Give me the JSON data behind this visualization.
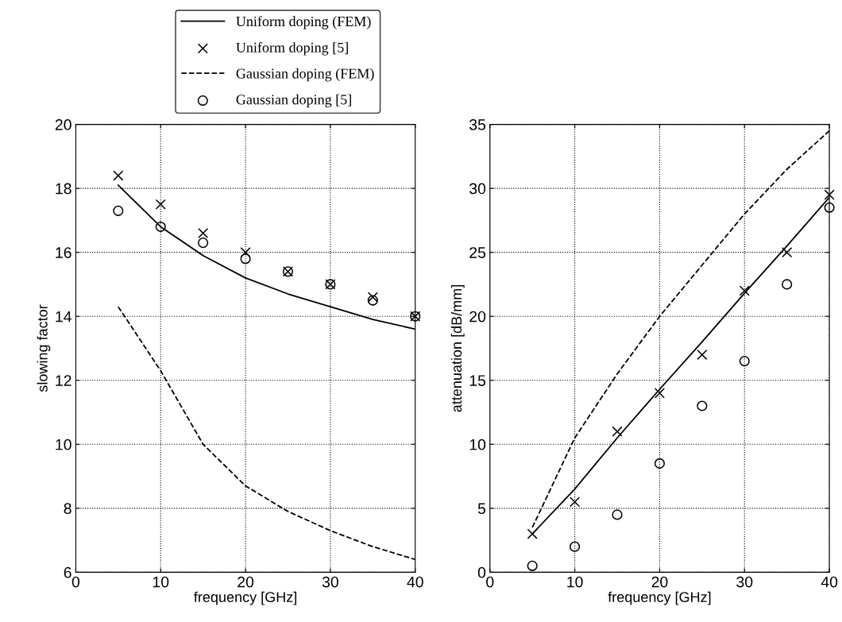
{
  "chart_data": [
    {
      "type": "line",
      "xlabel": "frequency [GHz]",
      "ylabel": "slowing factor",
      "x": [
        5,
        10,
        15,
        20,
        25,
        30,
        35,
        40
      ],
      "xlim": [
        0,
        40
      ],
      "xticks": [
        0,
        10,
        20,
        30,
        40
      ],
      "ylim": [
        6,
        20
      ],
      "yticks": [
        6,
        8,
        10,
        12,
        14,
        16,
        18,
        20
      ],
      "grid": true,
      "legend": "top",
      "series": [
        {
          "name": "Uniform doping (FEM)",
          "color": "#000000",
          "line_style": "solid",
          "marker": "none",
          "values": [
            18.1,
            16.8,
            15.9,
            15.2,
            14.7,
            14.3,
            13.9,
            13.6
          ]
        },
        {
          "name": "Uniform doping [5]",
          "type": "scatter",
          "color": "#000000",
          "marker": "cross",
          "values": [
            18.4,
            17.5,
            16.6,
            16.0,
            15.4,
            15.0,
            14.6,
            14.0
          ]
        },
        {
          "name": "Gaussian doping (FEM)",
          "color": "#000000",
          "line_style": "dashed",
          "marker": "none",
          "values": [
            14.3,
            12.3,
            10.0,
            8.7,
            7.9,
            7.3,
            6.8,
            6.4
          ]
        },
        {
          "name": "Gaussian doping [5]",
          "type": "scatter",
          "color": "#000000",
          "marker": "circle",
          "values": [
            17.3,
            16.8,
            16.3,
            15.8,
            15.4,
            15.0,
            14.5,
            14.0
          ]
        }
      ]
    },
    {
      "type": "line",
      "xlabel": "frequency [GHz]",
      "ylabel": "attenuation [dB/mm]",
      "x": [
        5,
        10,
        15,
        20,
        25,
        30,
        35,
        40
      ],
      "xlim": [
        0,
        40
      ],
      "xticks": [
        0,
        10,
        20,
        30,
        40
      ],
      "ylim": [
        0,
        35
      ],
      "yticks": [
        0,
        5,
        10,
        15,
        20,
        25,
        30,
        35
      ],
      "grid": true,
      "series": [
        {
          "color": "#000000",
          "line_style": "solid",
          "marker": "none",
          "values": [
            3.0,
            6.5,
            10.5,
            14.3,
            18.0,
            21.8,
            25.5,
            29.3
          ]
        },
        {
          "type": "scatter",
          "color": "#000000",
          "marker": "cross",
          "values": [
            3.0,
            5.5,
            11.0,
            14.0,
            17.0,
            22.0,
            25.0,
            29.5
          ]
        },
        {
          "color": "#000000",
          "line_style": "dashed",
          "marker": "none",
          "values": [
            3.5,
            10.5,
            15.5,
            20.0,
            24.0,
            28.0,
            31.5,
            34.5
          ]
        },
        {
          "type": "scatter",
          "color": "#000000",
          "marker": "circle",
          "values": [
            0.5,
            2.0,
            4.5,
            8.5,
            13.0,
            16.5,
            22.5,
            28.5
          ]
        }
      ]
    }
  ]
}
